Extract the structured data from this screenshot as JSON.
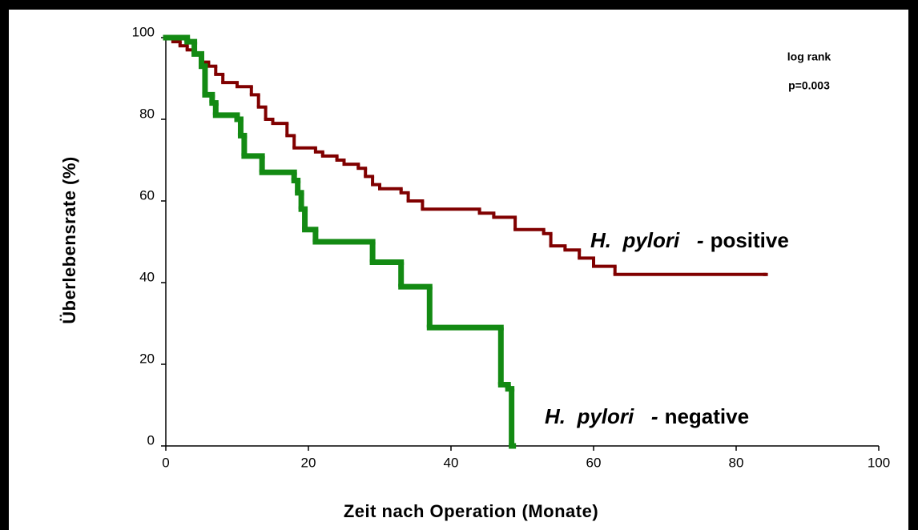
{
  "chart_data": {
    "type": "step",
    "x_label": "Zeit nach Operation (Monate)",
    "y_label": "Überlebensrate (%)",
    "annotations": [
      "log rank",
      "p=0.003"
    ],
    "xlim": [
      0,
      100
    ],
    "ylim": [
      0,
      100
    ],
    "xticks": [
      0,
      20,
      40,
      60,
      80,
      100
    ],
    "yticks": [
      0,
      20,
      40,
      60,
      80,
      100
    ],
    "series": [
      {
        "prefix": "H.  pylori   -",
        "name": "positive",
        "color": "#800000",
        "x": [
          0,
          1,
          2,
          3,
          4,
          5,
          6,
          7,
          8,
          10,
          12,
          13,
          14,
          15,
          17,
          18,
          21,
          22,
          24,
          25,
          27,
          28,
          29,
          30,
          33,
          34,
          36,
          44,
          46,
          49,
          53,
          54,
          56,
          58,
          60,
          63,
          84
        ],
        "values": [
          100,
          99,
          98,
          97,
          96,
          94,
          93,
          91,
          89,
          88,
          86,
          83,
          80,
          79,
          76,
          73,
          72,
          71,
          70,
          69,
          68,
          66,
          64,
          63,
          62,
          60,
          58,
          57,
          56,
          53,
          52,
          49,
          48,
          46,
          44,
          42,
          42
        ]
      },
      {
        "prefix": "H.  pylori   -",
        "name": "negative",
        "color": "#138a13",
        "x": [
          0,
          3,
          4,
          5,
          5.5,
          6.5,
          7,
          10,
          10.5,
          11,
          13.5,
          18,
          18.5,
          19,
          19.5,
          21,
          29,
          33,
          37,
          47,
          48,
          48.5
        ],
        "values": [
          100,
          99,
          96,
          93,
          86,
          84,
          81,
          80,
          76,
          71,
          67,
          65,
          62,
          58,
          53,
          50,
          45,
          39,
          29,
          15,
          14,
          0
        ]
      }
    ]
  }
}
